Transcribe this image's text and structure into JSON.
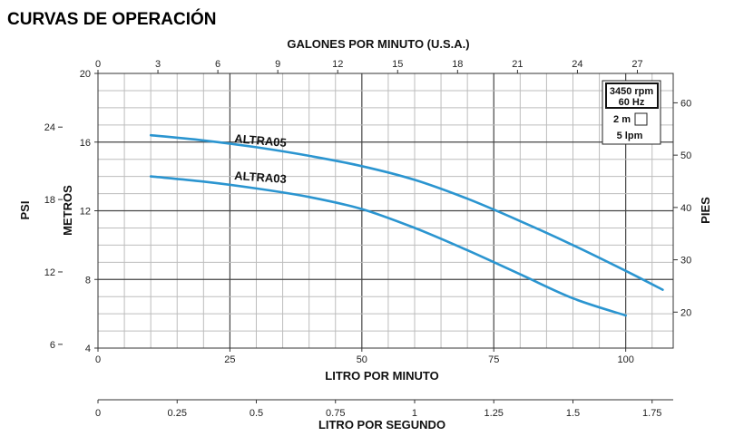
{
  "title": "CURVAS DE OPERACIÓN",
  "chart_data": {
    "type": "line",
    "grid": true,
    "x_primary": {
      "label": "LITRO POR MINUTO",
      "range": [
        0,
        109
      ],
      "ticks": [
        0,
        25,
        50,
        75,
        100
      ]
    },
    "x_top": {
      "label": "GALONES POR MINUTO (U.S.A.)",
      "ticks": [
        0,
        3,
        6,
        9,
        12,
        15,
        18,
        21,
        24,
        27
      ]
    },
    "x_bottom_secondary": {
      "label": "LITRO POR SEGUNDO",
      "ticks": [
        "0",
        "0.25",
        "0.5",
        "0.75",
        "1",
        "1.25",
        "1.5",
        "1.75"
      ]
    },
    "y_primary": {
      "label": "METROS",
      "range": [
        4,
        20
      ],
      "ticks": [
        4,
        8,
        12,
        16,
        20
      ]
    },
    "y_psi": {
      "label": "PSI",
      "ticks": [
        6,
        12,
        18,
        24
      ]
    },
    "y_pies": {
      "label": "PIES",
      "ticks": [
        20,
        30,
        40,
        50,
        60
      ]
    },
    "series": [
      {
        "name": "ALTRA05",
        "color": "#2b95d0",
        "x": [
          10,
          20,
          30,
          40,
          50,
          60,
          70,
          80,
          90,
          100,
          107
        ],
        "y": [
          16.4,
          16.1,
          15.7,
          15.2,
          14.6,
          13.8,
          12.7,
          11.4,
          10.0,
          8.5,
          7.4
        ]
      },
      {
        "name": "ALTRA03",
        "color": "#2b95d0",
        "x": [
          10,
          20,
          30,
          40,
          50,
          60,
          70,
          80,
          90,
          100
        ],
        "y": [
          14.0,
          13.7,
          13.3,
          12.8,
          12.1,
          11.0,
          9.7,
          8.3,
          6.9,
          5.9
        ]
      }
    ],
    "info_box": {
      "speed": "3450 rpm",
      "frequency": "60 Hz",
      "scale_vertical": "2 m",
      "scale_horizontal": "5 lpm"
    }
  }
}
